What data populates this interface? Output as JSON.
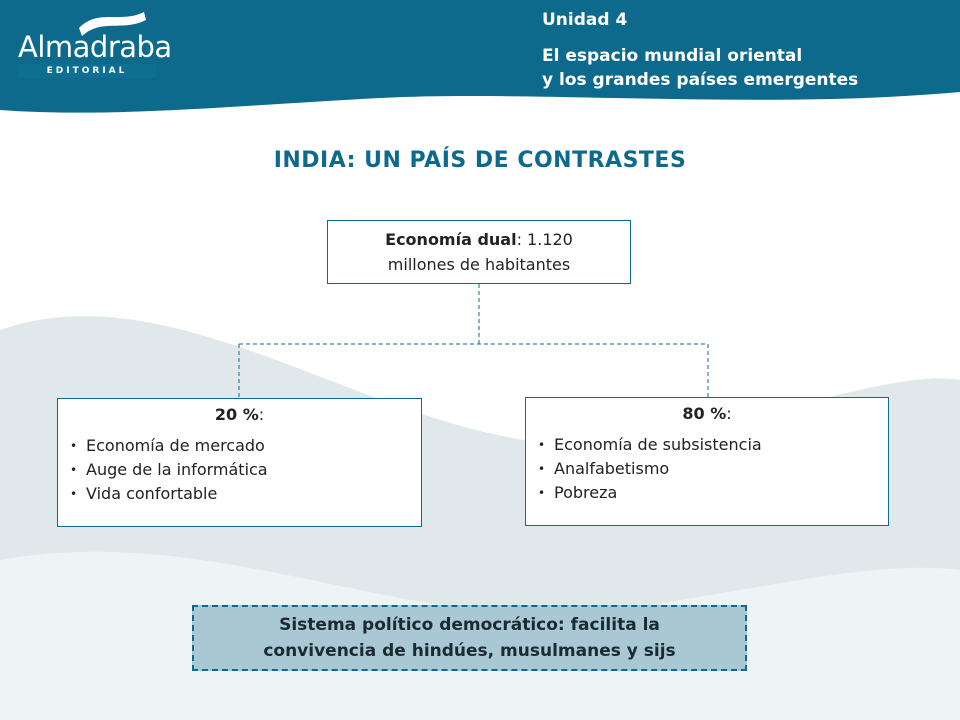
{
  "header": {
    "logo_name": "Almadraba",
    "logo_sub": "EDITORIAL",
    "unit_label": "Unidad 4",
    "unit_title_line1": "El espacio mundial oriental",
    "unit_title_line2": "y los grandes países emergentes"
  },
  "title": "INDIA: UN PAÍS DE CONTRASTES",
  "top_box": {
    "head_bold": "Economía dual",
    "head_rest": ": 1.120",
    "line2": "millones de habitantes"
  },
  "left_box": {
    "head_bold": "20 %",
    "head_rest": ":",
    "items": [
      "Economía de mercado",
      "Auge de  la informática",
      "Vida confortable"
    ]
  },
  "right_box": {
    "head_bold": "80 %",
    "head_rest": ":",
    "items": [
      "Economía de subsistencia",
      "Analfabetismo",
      "Pobreza"
    ]
  },
  "bottom_box": {
    "line1": "Sistema político democrático: facilita la",
    "line2": "convivencia de hindúes, musulmanes y sijs"
  },
  "colors": {
    "header_blue": "#0e6a8c",
    "wave_gray": "#dde6ea",
    "bottom_fill": "#a9c8d3"
  }
}
